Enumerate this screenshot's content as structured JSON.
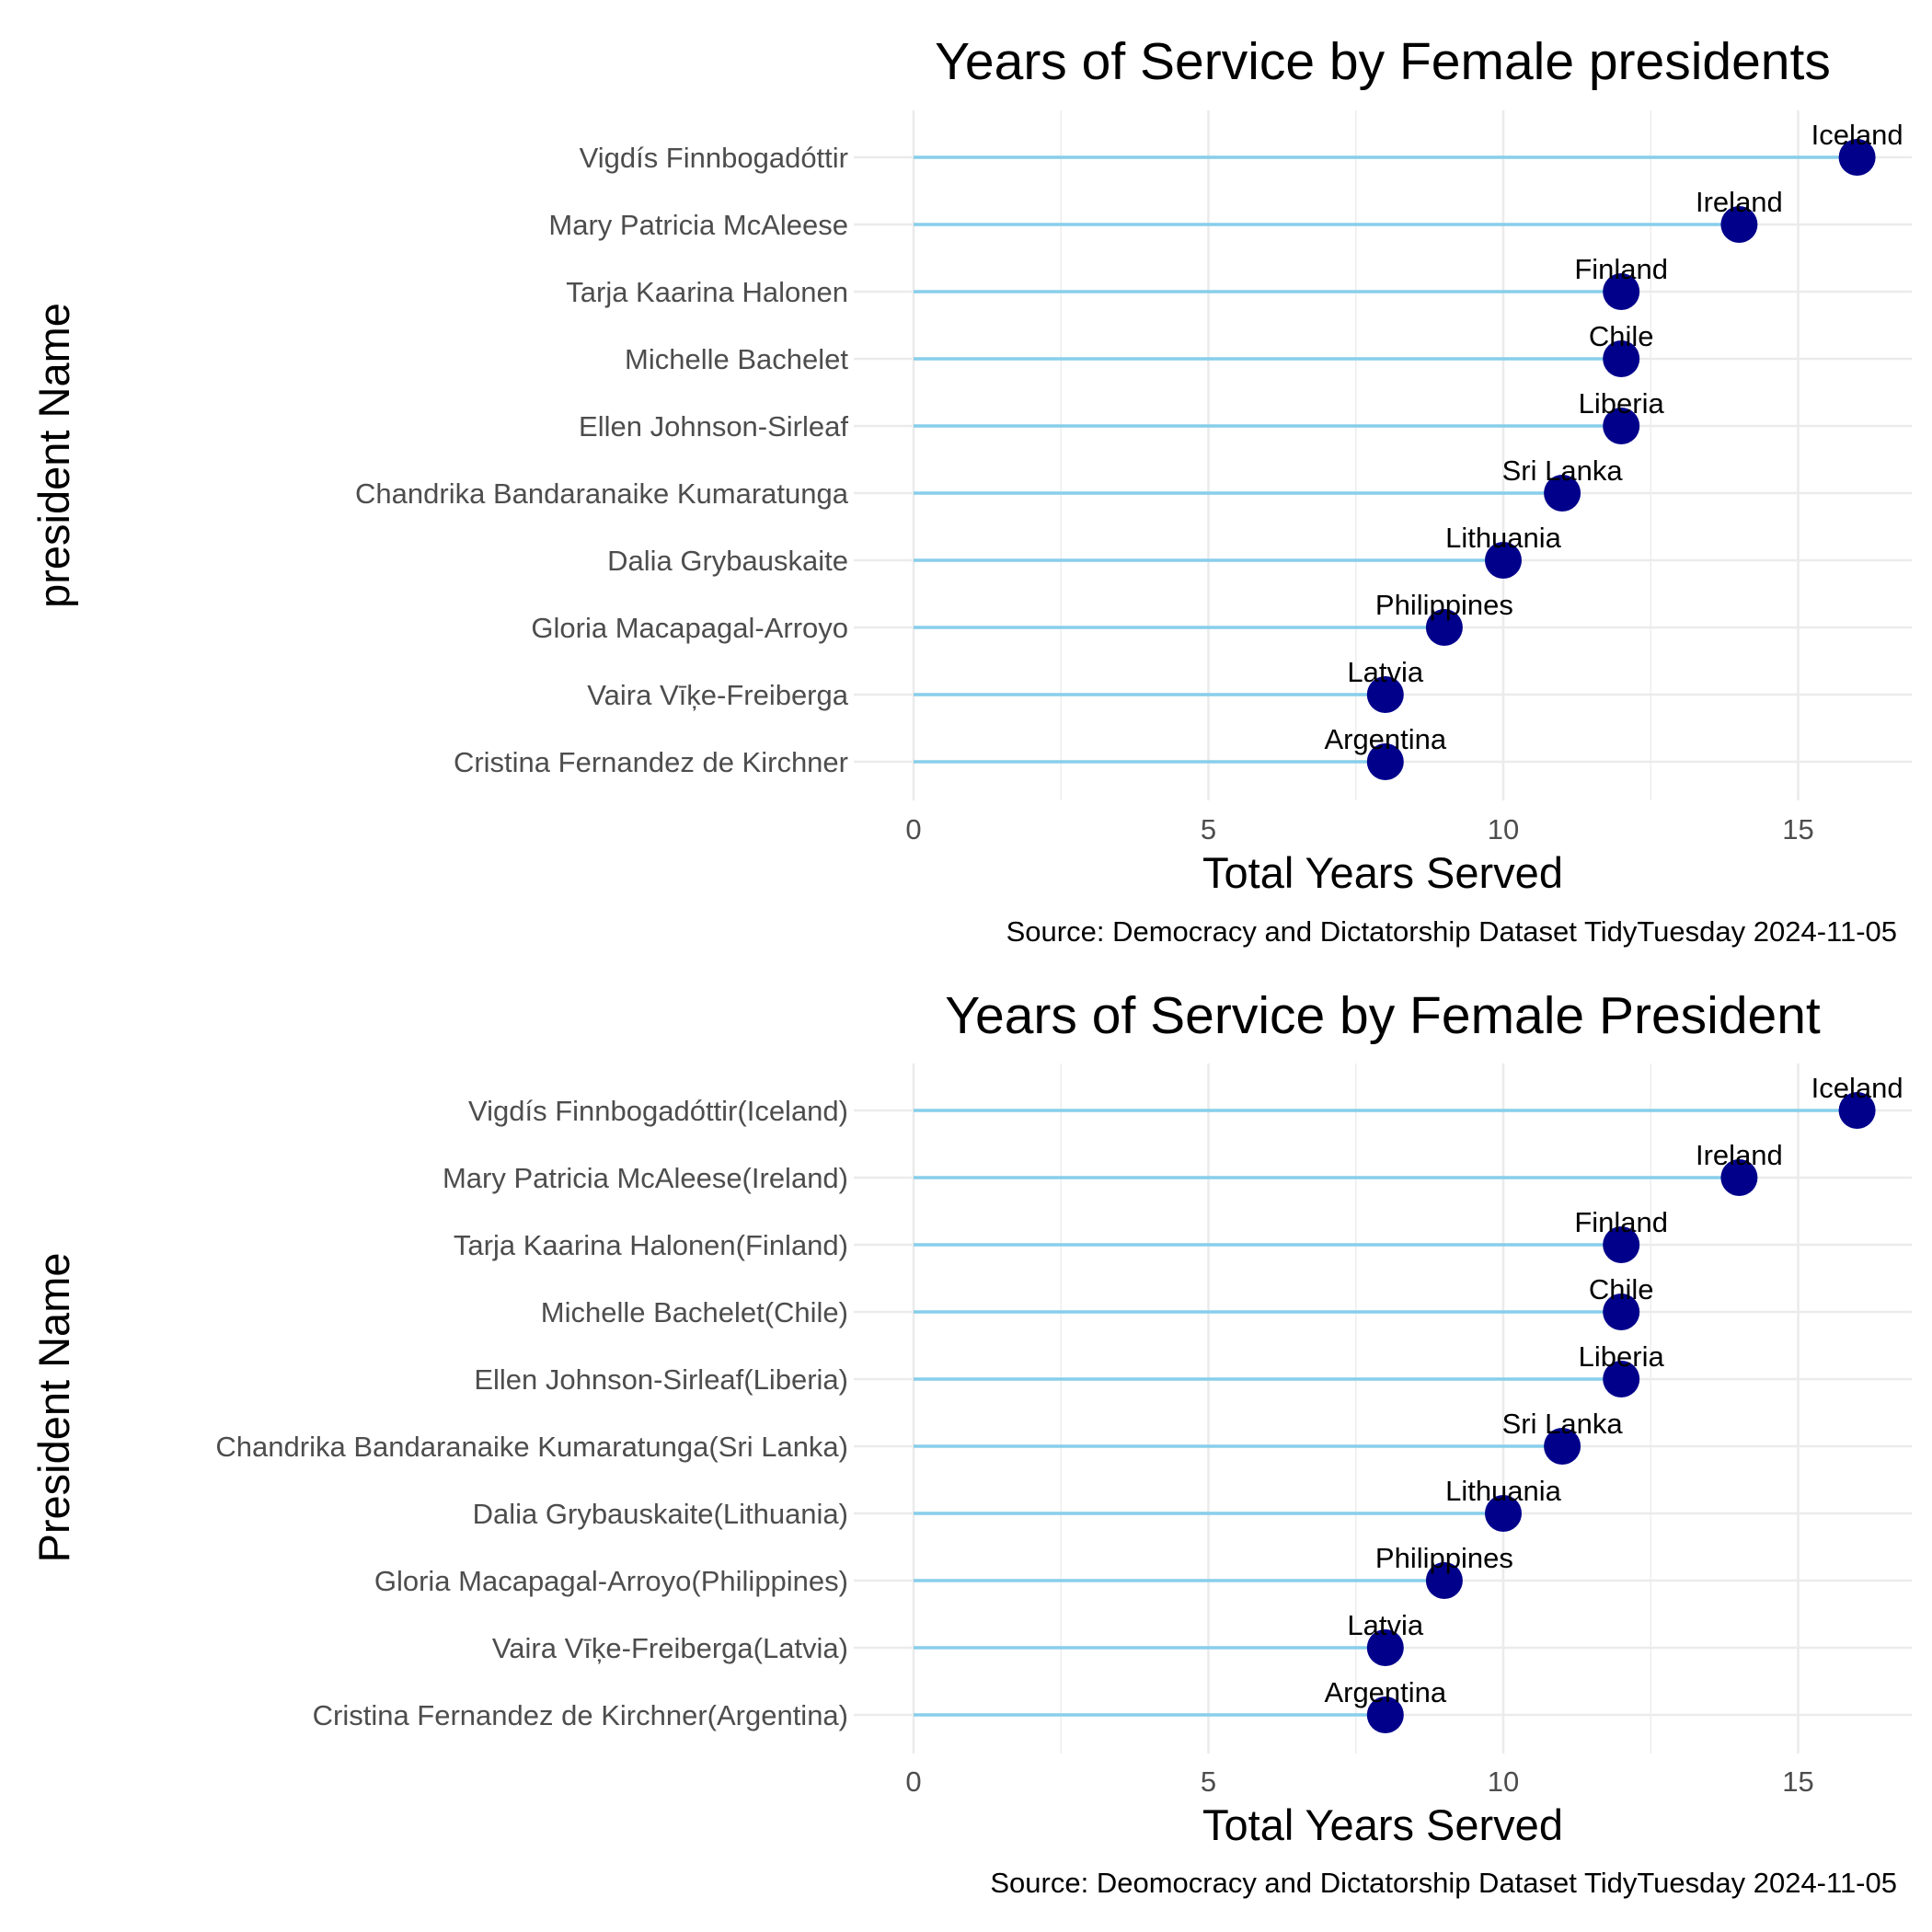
{
  "colors": {
    "segment": "#87ceeb",
    "point": "#00008b",
    "grid": "#ebebeb",
    "tick_text": "#4d4d4d",
    "text": "#000000"
  },
  "chart_data": [
    {
      "type": "lollipop",
      "title": "Years of Service by Female presidents",
      "xlabel": "Total Years Served",
      "ylabel": "president Name",
      "caption": "Source: Democracy and Dictatorship Dataset TidyTuesday 2024-11-05",
      "xlim": [
        0,
        16.8
      ],
      "xticks": [
        0,
        5,
        10,
        15
      ],
      "grid": true,
      "categories": [
        "Vigdís Finnbogadóttir",
        "Mary Patricia McAleese",
        "Tarja Kaarina Halonen",
        "Michelle Bachelet",
        "Ellen Johnson-Sirleaf",
        "Chandrika Bandaranaike Kumaratunga",
        "Dalia Grybauskaite",
        "Gloria Macapagal-Arroyo",
        "Vaira Vīķe-Freiberga",
        "Cristina Fernandez de Kirchner"
      ],
      "values": [
        16,
        14,
        12,
        12,
        12,
        11,
        10,
        9,
        8,
        8
      ],
      "point_labels": [
        "Iceland",
        "Ireland",
        "Finland",
        "Chile",
        "Liberia",
        "Sri Lanka",
        "Lithuania",
        "Philippines",
        "Latvia",
        "Argentina"
      ]
    },
    {
      "type": "lollipop",
      "title": "Years of Service by Female President",
      "xlabel": "Total Years Served",
      "ylabel": "President Name",
      "caption": "Source: Deomocracy and Dictatorship Dataset TidyTuesday 2024-11-05",
      "xlim": [
        0,
        16.8
      ],
      "xticks": [
        0,
        5,
        10,
        15
      ],
      "grid": true,
      "categories": [
        "Vigdís Finnbogadóttir(Iceland)",
        "Mary Patricia McAleese(Ireland)",
        "Tarja Kaarina Halonen(Finland)",
        "Michelle Bachelet(Chile)",
        "Ellen Johnson-Sirleaf(Liberia)",
        "Chandrika Bandaranaike Kumaratunga(Sri Lanka)",
        "Dalia Grybauskaite(Lithuania)",
        "Gloria Macapagal-Arroyo(Philippines)",
        "Vaira Vīķe-Freiberga(Latvia)",
        "Cristina Fernandez de Kirchner(Argentina)"
      ],
      "values": [
        16,
        14,
        12,
        12,
        12,
        11,
        10,
        9,
        8,
        8
      ],
      "point_labels": [
        "Iceland",
        "Ireland",
        "Finland",
        "Chile",
        "Liberia",
        "Sri Lanka",
        "Lithuania",
        "Philippines",
        "Latvia",
        "Argentina"
      ]
    }
  ]
}
